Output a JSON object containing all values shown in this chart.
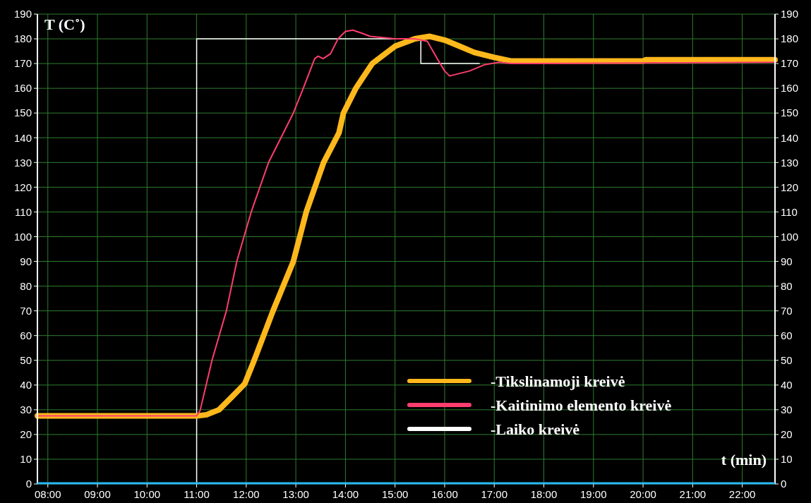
{
  "chart_data": {
    "type": "line",
    "ylabel": "T (C˚)",
    "xlabel": "t (min)",
    "xlim": [
      7.79,
      22.66
    ],
    "ylim": [
      0,
      190
    ],
    "xticks": [
      {
        "value": 8,
        "label": "08:00"
      },
      {
        "value": 9,
        "label": "09:00"
      },
      {
        "value": 10,
        "label": "10:00"
      },
      {
        "value": 11,
        "label": "11:00"
      },
      {
        "value": 12,
        "label": "12:00"
      },
      {
        "value": 13,
        "label": "13:00"
      },
      {
        "value": 14,
        "label": "14:00"
      },
      {
        "value": 15,
        "label": "15:00"
      },
      {
        "value": 16,
        "label": "16:00"
      },
      {
        "value": 17,
        "label": "17:00"
      },
      {
        "value": 18,
        "label": "18:00"
      },
      {
        "value": 19,
        "label": "19:00"
      },
      {
        "value": 20,
        "label": "20:00"
      },
      {
        "value": 21,
        "label": "21:00"
      },
      {
        "value": 22,
        "label": "22:00"
      }
    ],
    "yticks": [
      0,
      10,
      20,
      30,
      40,
      50,
      60,
      70,
      80,
      90,
      100,
      110,
      120,
      130,
      140,
      150,
      160,
      170,
      180,
      190
    ],
    "y2lim": [
      0,
      190
    ],
    "y2ticks": [
      0,
      10,
      20,
      30,
      40,
      50,
      60,
      70,
      80,
      90,
      100,
      110,
      120,
      130,
      140,
      150,
      160,
      170,
      180,
      190
    ],
    "grid": true,
    "legend": "bottom right",
    "series": [
      {
        "name": "-Laiko kreivė",
        "color": "#ffffff",
        "x": [
          11.0,
          11.0,
          15.52,
          15.52,
          16.7
        ],
        "values": [
          0,
          180,
          180,
          170,
          170
        ]
      },
      {
        "name": "-Tikslinamoji kreivė",
        "color": "#ffb81c",
        "x": [
          7.79,
          11.0,
          11.2,
          11.45,
          11.7,
          11.97,
          12.16,
          12.54,
          12.95,
          13.21,
          13.56,
          13.87,
          13.96,
          14.21,
          14.54,
          15.0,
          15.4,
          15.7,
          16.0,
          16.3,
          16.6,
          17.0,
          17.35,
          20.0,
          20.05,
          22.66
        ],
        "values": [
          27.5,
          27.5,
          28,
          30,
          35,
          40.5,
          50,
          70,
          90,
          110,
          130,
          142,
          150,
          160,
          170,
          177,
          180,
          181,
          179.5,
          177,
          174.5,
          172.5,
          171,
          171,
          171.5,
          171.5
        ]
      },
      {
        "name": "-Kaitinimo elemento kreivė",
        "color": "#ff3d6e",
        "x": [
          7.79,
          11.0,
          11.07,
          11.31,
          11.6,
          11.81,
          12.1,
          12.45,
          12.7,
          12.95,
          13.15,
          13.38,
          13.45,
          13.55,
          13.7,
          13.85,
          14.0,
          14.15,
          14.3,
          14.5,
          15.0,
          15.4,
          15.65,
          15.85,
          16.0,
          16.1,
          16.3,
          16.5,
          16.8,
          17.1,
          17.35,
          22.66
        ],
        "values": [
          27.5,
          27.5,
          29.7,
          50,
          70,
          90,
          110,
          130,
          140,
          150,
          160,
          172,
          173,
          172,
          174,
          180,
          183,
          183.5,
          182.5,
          181,
          180,
          180,
          179,
          172,
          167,
          165,
          166,
          167,
          169.5,
          170.5,
          170,
          170.5
        ]
      }
    ]
  }
}
